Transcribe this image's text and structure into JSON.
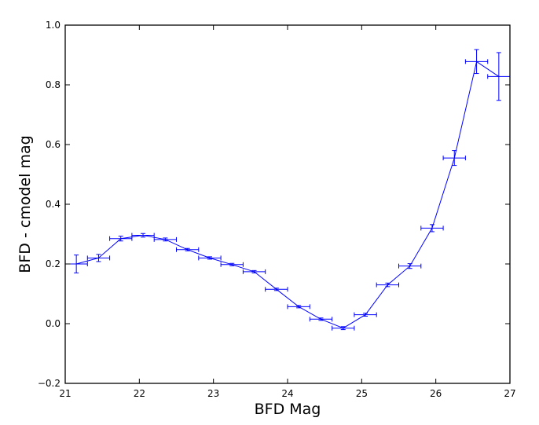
{
  "chart_data": {
    "type": "line",
    "title": "",
    "xlabel": "BFD Mag",
    "ylabel": "BFD - cmodel mag",
    "xlim": [
      21,
      27
    ],
    "ylim": [
      -0.2,
      1.0
    ],
    "x_ticks": [
      21,
      22,
      23,
      24,
      25,
      26,
      27
    ],
    "y_ticks": [
      -0.2,
      0.0,
      0.2,
      0.4,
      0.6,
      0.8,
      1.0
    ],
    "x_tick_labels": [
      "21",
      "22",
      "23",
      "24",
      "25",
      "26",
      "27"
    ],
    "y_tick_labels": [
      "−0.2",
      "0.0",
      "0.2",
      "0.4",
      "0.6",
      "0.8",
      "1.0"
    ],
    "grid": false,
    "legend": "none",
    "line_color": "#0000ff",
    "series": [
      {
        "x": [
          21.15,
          21.45,
          21.75,
          22.05,
          22.35,
          22.65,
          22.95,
          23.25,
          23.55,
          23.85,
          24.15,
          24.45,
          24.75,
          25.05,
          25.35,
          25.65,
          25.95,
          26.25,
          26.55,
          26.85
        ],
        "y": [
          0.2,
          0.22,
          0.285,
          0.296,
          0.282,
          0.248,
          0.22,
          0.198,
          0.174,
          0.115,
          0.057,
          0.015,
          -0.015,
          0.03,
          0.13,
          0.193,
          0.32,
          0.555,
          0.878,
          0.828
        ],
        "xerr": [
          0.15,
          0.15,
          0.15,
          0.15,
          0.15,
          0.15,
          0.15,
          0.15,
          0.15,
          0.15,
          0.15,
          0.15,
          0.15,
          0.15,
          0.15,
          0.15,
          0.15,
          0.15,
          0.15,
          0.15
        ],
        "yerr": [
          0.03,
          0.012,
          0.008,
          0.006,
          0.005,
          0.004,
          0.004,
          0.004,
          0.004,
          0.004,
          0.004,
          0.004,
          0.005,
          0.005,
          0.006,
          0.008,
          0.012,
          0.025,
          0.04,
          0.08
        ]
      }
    ]
  }
}
